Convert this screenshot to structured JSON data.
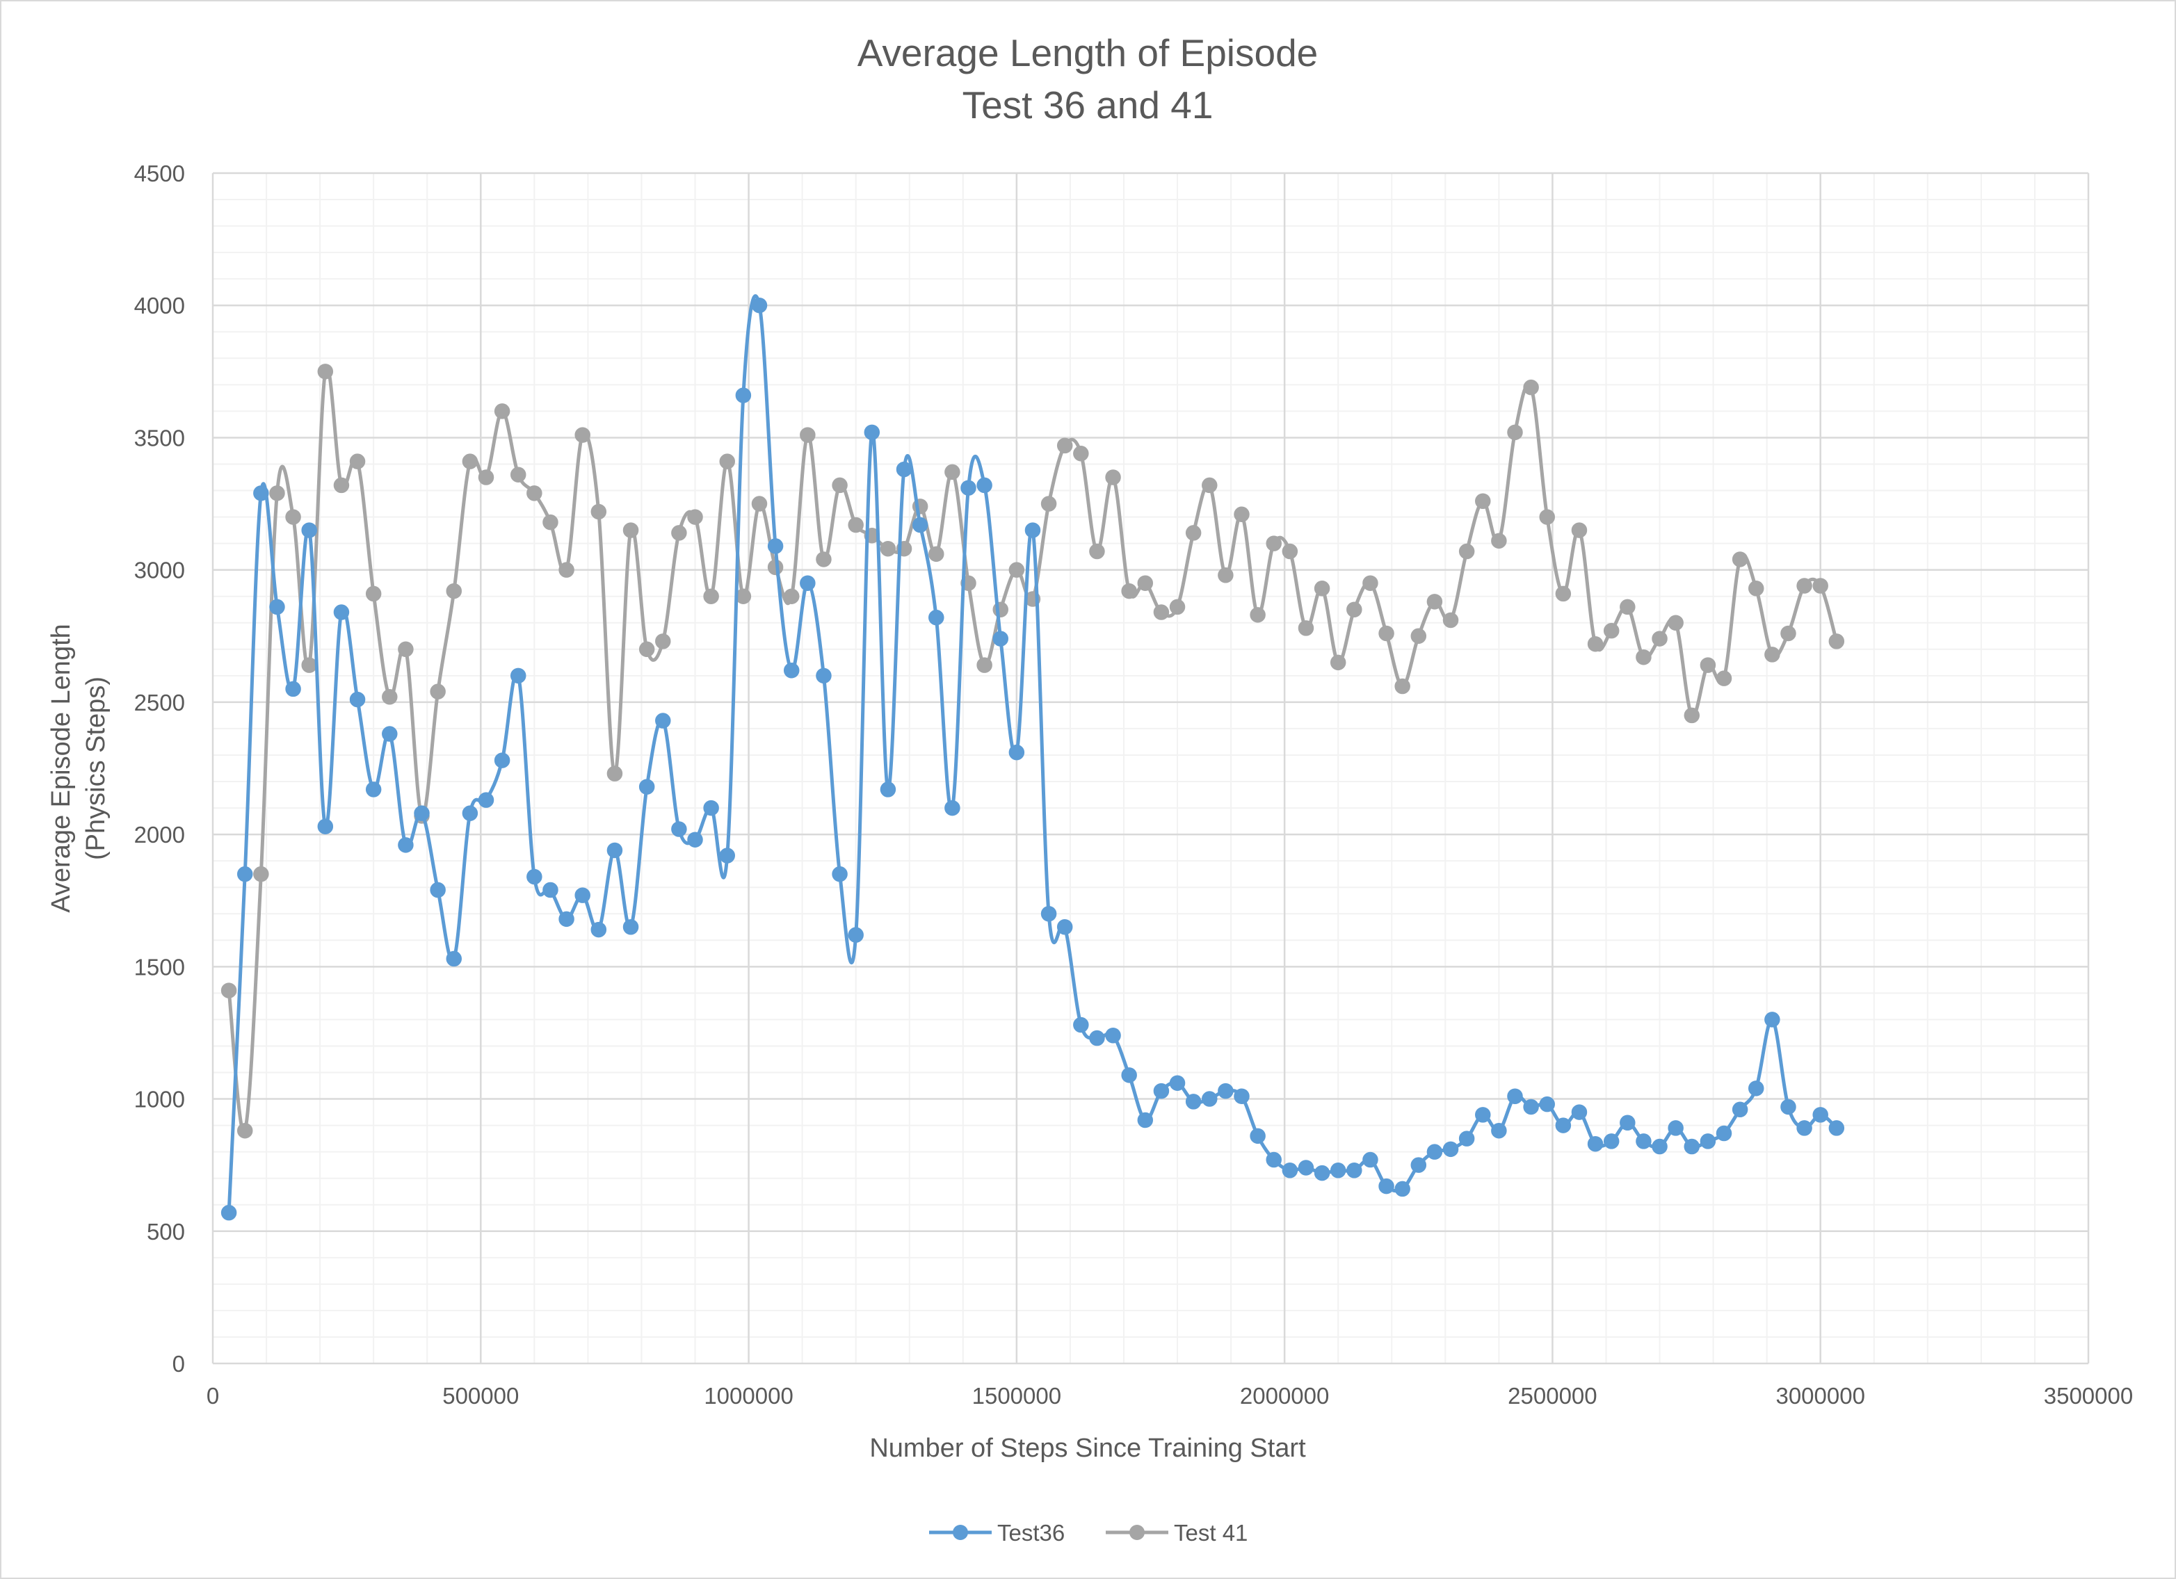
{
  "chart_data": {
    "type": "line",
    "title": "Average Length of Episode",
    "subtitle": "Test 36 and 41",
    "xlabel": "Number of Steps Since Training Start",
    "ylabel": "Average Episode Length",
    "ylabel_sub": "(Physics Steps)",
    "xlim": [
      0,
      3500000
    ],
    "ylim": [
      0,
      4500
    ],
    "x_major_step": 500000,
    "y_major_step": 500,
    "x_tick_labels": [
      "0",
      "500000",
      "1000000",
      "1500000",
      "2000000",
      "2500000",
      "3000000",
      "3500000"
    ],
    "y_tick_labels": [
      "0",
      "500",
      "1000",
      "1500",
      "2000",
      "2500",
      "3000",
      "3500",
      "4000",
      "4500"
    ],
    "grid": true,
    "minor_grid": true,
    "smoothed": true,
    "legend_position": "bottom",
    "x_start": 30000,
    "x_step": 30000,
    "series": [
      {
        "name": "Test36",
        "color": "#5b9bd5",
        "values": [
          570,
          1850,
          3290,
          2860,
          2550,
          3150,
          2030,
          2840,
          2510,
          2170,
          2380,
          1960,
          2080,
          1790,
          1530,
          2080,
          2130,
          2280,
          2600,
          1840,
          1790,
          1680,
          1770,
          1640,
          1940,
          1650,
          2180,
          2430,
          2020,
          1980,
          2100,
          1920,
          3660,
          4000,
          3090,
          2620,
          2950,
          2600,
          1850,
          1620,
          3520,
          2170,
          3380,
          3170,
          2820,
          2100,
          3310,
          3320,
          2740,
          2310,
          3150,
          1700,
          1650,
          1280,
          1230,
          1240,
          1090,
          920,
          1030,
          1060,
          990,
          1000,
          1030,
          1010,
          860,
          770,
          730,
          740,
          720,
          730,
          730,
          770,
          670,
          660,
          750,
          800,
          810,
          850,
          940,
          880,
          1010,
          970,
          980,
          900,
          950,
          830,
          840,
          910,
          840,
          820,
          890,
          820,
          840,
          870,
          960,
          1040,
          1300,
          970,
          890,
          940,
          890
        ]
      },
      {
        "name": "Test 41",
        "color": "#a5a5a5",
        "values": [
          1410,
          880,
          1850,
          3290,
          3200,
          2640,
          3750,
          3320,
          3410,
          2910,
          2520,
          2700,
          2070,
          2540,
          2920,
          3410,
          3350,
          3600,
          3360,
          3290,
          3180,
          3000,
          3510,
          3220,
          2230,
          3150,
          2700,
          2730,
          3140,
          3200,
          2900,
          3410,
          2900,
          3250,
          3010,
          2900,
          3510,
          3040,
          3320,
          3170,
          3130,
          3080,
          3080,
          3240,
          3060,
          3370,
          2950,
          2640,
          2850,
          3000,
          2890,
          3250,
          3470,
          3440,
          3070,
          3350,
          2920,
          2950,
          2840,
          2860,
          3140,
          3320,
          2980,
          3210,
          2830,
          3100,
          3070,
          2780,
          2930,
          2650,
          2850,
          2950,
          2760,
          2560,
          2750,
          2880,
          2810,
          3070,
          3260,
          3110,
          3520,
          3690,
          3200,
          2910,
          3150,
          2720,
          2770,
          2860,
          2670,
          2740,
          2800,
          2450,
          2640,
          2590,
          3040,
          2930,
          2680,
          2760,
          2940,
          2940,
          2730
        ]
      }
    ]
  }
}
